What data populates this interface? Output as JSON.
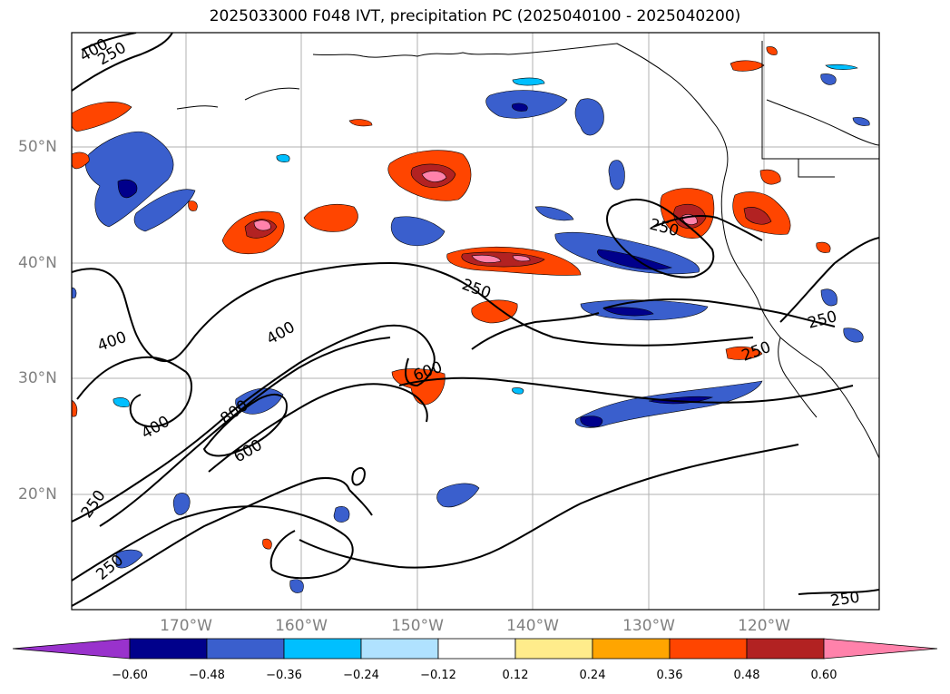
{
  "title": "2025033000 F048 IVT, precipitation PC (2025040100 - 2025040200)",
  "lat_labels": [
    "50°N",
    "40°N",
    "30°N",
    "20°N"
  ],
  "lon_labels": [
    "170°W",
    "160°W",
    "150°W",
    "140°W",
    "130°W",
    "120°W"
  ],
  "contour_labels": [
    "400",
    "250",
    "400",
    "400",
    "250",
    "250",
    "250",
    "400",
    "800",
    "600",
    "600",
    "250",
    "250",
    "250",
    "250"
  ],
  "colorbar": {
    "colors": [
      "#9932cc",
      "#00008b",
      "#3a5fcd",
      "#00bfff",
      "#b0e2ff",
      "#ffffff",
      "#ffec8b",
      "#ffa500",
      "#ff4500",
      "#b22222",
      "#ff82ab"
    ],
    "tick_labels": [
      "−0.60",
      "−0.48",
      "−0.36",
      "−0.24",
      "−0.12",
      "0.12",
      "0.24",
      "0.36",
      "0.48",
      "0.60"
    ]
  },
  "colors": {
    "coast": "#000000",
    "grid": "#b0b0b0",
    "contour": "#000000",
    "axis_text": "#808080"
  }
}
